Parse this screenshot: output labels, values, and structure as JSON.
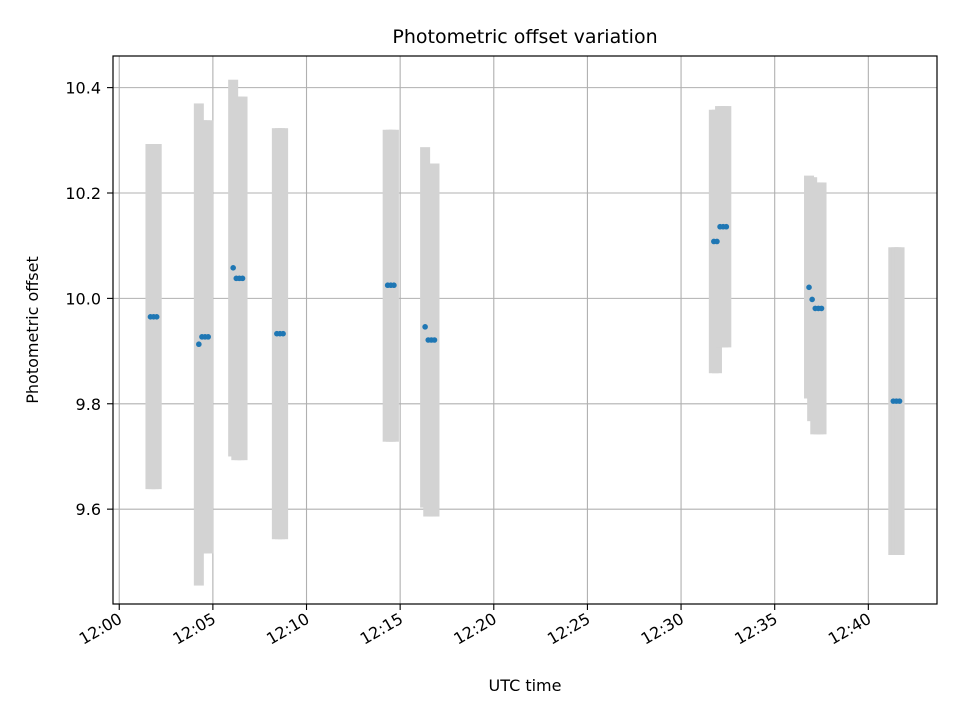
{
  "chart_data": {
    "type": "scatter",
    "title": "Photometric offset variation",
    "xlabel": "UTC time",
    "ylabel": "Photometric offset",
    "x_unit": "time (HH:MM, UTC)",
    "xlim": [
      "11:59:40",
      "12:43:40"
    ],
    "ylim": [
      9.42,
      10.46
    ],
    "grid": true,
    "xticks": [
      "12:00",
      "12:05",
      "12:10",
      "12:15",
      "12:20",
      "12:25",
      "12:30",
      "12:35",
      "12:40"
    ],
    "yticks": [
      9.6,
      9.8,
      10.0,
      10.2,
      10.4
    ],
    "series": [
      {
        "color": "#1f77b4",
        "errorbar_color": "#d3d3d3",
        "points": [
          {
            "x": "12:01:40",
            "y": 9.965,
            "ylow": 9.638,
            "yhigh": 10.293
          },
          {
            "x": "12:01:50",
            "y": 9.965,
            "ylow": 9.638,
            "yhigh": 10.293
          },
          {
            "x": "12:02:00",
            "y": 9.965,
            "ylow": 9.638,
            "yhigh": 10.293
          },
          {
            "x": "12:04:15",
            "y": 9.913,
            "ylow": 9.455,
            "yhigh": 10.37
          },
          {
            "x": "12:04:25",
            "y": 9.927,
            "ylow": 9.516,
            "yhigh": 10.338
          },
          {
            "x": "12:04:35",
            "y": 9.927,
            "ylow": 9.516,
            "yhigh": 10.338
          },
          {
            "x": "12:04:45",
            "y": 9.927,
            "ylow": 9.516,
            "yhigh": 10.338
          },
          {
            "x": "12:06:05",
            "y": 10.058,
            "ylow": 9.7,
            "yhigh": 10.415
          },
          {
            "x": "12:06:15",
            "y": 10.038,
            "ylow": 9.693,
            "yhigh": 10.383
          },
          {
            "x": "12:06:25",
            "y": 10.038,
            "ylow": 9.693,
            "yhigh": 10.383
          },
          {
            "x": "12:06:35",
            "y": 10.038,
            "ylow": 9.693,
            "yhigh": 10.383
          },
          {
            "x": "12:08:25",
            "y": 9.933,
            "ylow": 9.543,
            "yhigh": 10.323
          },
          {
            "x": "12:08:35",
            "y": 9.933,
            "ylow": 9.543,
            "yhigh": 10.323
          },
          {
            "x": "12:08:45",
            "y": 9.933,
            "ylow": 9.543,
            "yhigh": 10.323
          },
          {
            "x": "12:14:20",
            "y": 10.025,
            "ylow": 9.728,
            "yhigh": 10.32
          },
          {
            "x": "12:14:30",
            "y": 10.025,
            "ylow": 9.728,
            "yhigh": 10.32
          },
          {
            "x": "12:14:40",
            "y": 10.025,
            "ylow": 9.728,
            "yhigh": 10.32
          },
          {
            "x": "12:16:20",
            "y": 9.946,
            "ylow": 9.603,
            "yhigh": 10.287
          },
          {
            "x": "12:16:30",
            "y": 9.921,
            "ylow": 9.586,
            "yhigh": 10.256
          },
          {
            "x": "12:16:40",
            "y": 9.921,
            "ylow": 9.586,
            "yhigh": 10.256
          },
          {
            "x": "12:16:50",
            "y": 9.921,
            "ylow": 9.586,
            "yhigh": 10.256
          },
          {
            "x": "12:31:45",
            "y": 10.108,
            "ylow": 9.858,
            "yhigh": 10.358
          },
          {
            "x": "12:31:55",
            "y": 10.108,
            "ylow": 9.858,
            "yhigh": 10.358
          },
          {
            "x": "12:32:05",
            "y": 10.136,
            "ylow": 9.907,
            "yhigh": 10.365
          },
          {
            "x": "12:32:15",
            "y": 10.136,
            "ylow": 9.907,
            "yhigh": 10.365
          },
          {
            "x": "12:32:25",
            "y": 10.136,
            "ylow": 9.907,
            "yhigh": 10.365
          },
          {
            "x": "12:36:50",
            "y": 10.021,
            "ylow": 9.81,
            "yhigh": 10.233
          },
          {
            "x": "12:37:00",
            "y": 9.998,
            "ylow": 9.767,
            "yhigh": 10.23
          },
          {
            "x": "12:37:10",
            "y": 9.981,
            "ylow": 9.742,
            "yhigh": 10.22
          },
          {
            "x": "12:37:20",
            "y": 9.981,
            "ylow": 9.742,
            "yhigh": 10.22
          },
          {
            "x": "12:37:30",
            "y": 9.981,
            "ylow": 9.742,
            "yhigh": 10.22
          },
          {
            "x": "12:41:20",
            "y": 9.805,
            "ylow": 9.513,
            "yhigh": 10.097
          },
          {
            "x": "12:41:30",
            "y": 9.805,
            "ylow": 9.513,
            "yhigh": 10.097
          },
          {
            "x": "12:41:40",
            "y": 9.805,
            "ylow": 9.513,
            "yhigh": 10.097
          }
        ]
      }
    ]
  }
}
